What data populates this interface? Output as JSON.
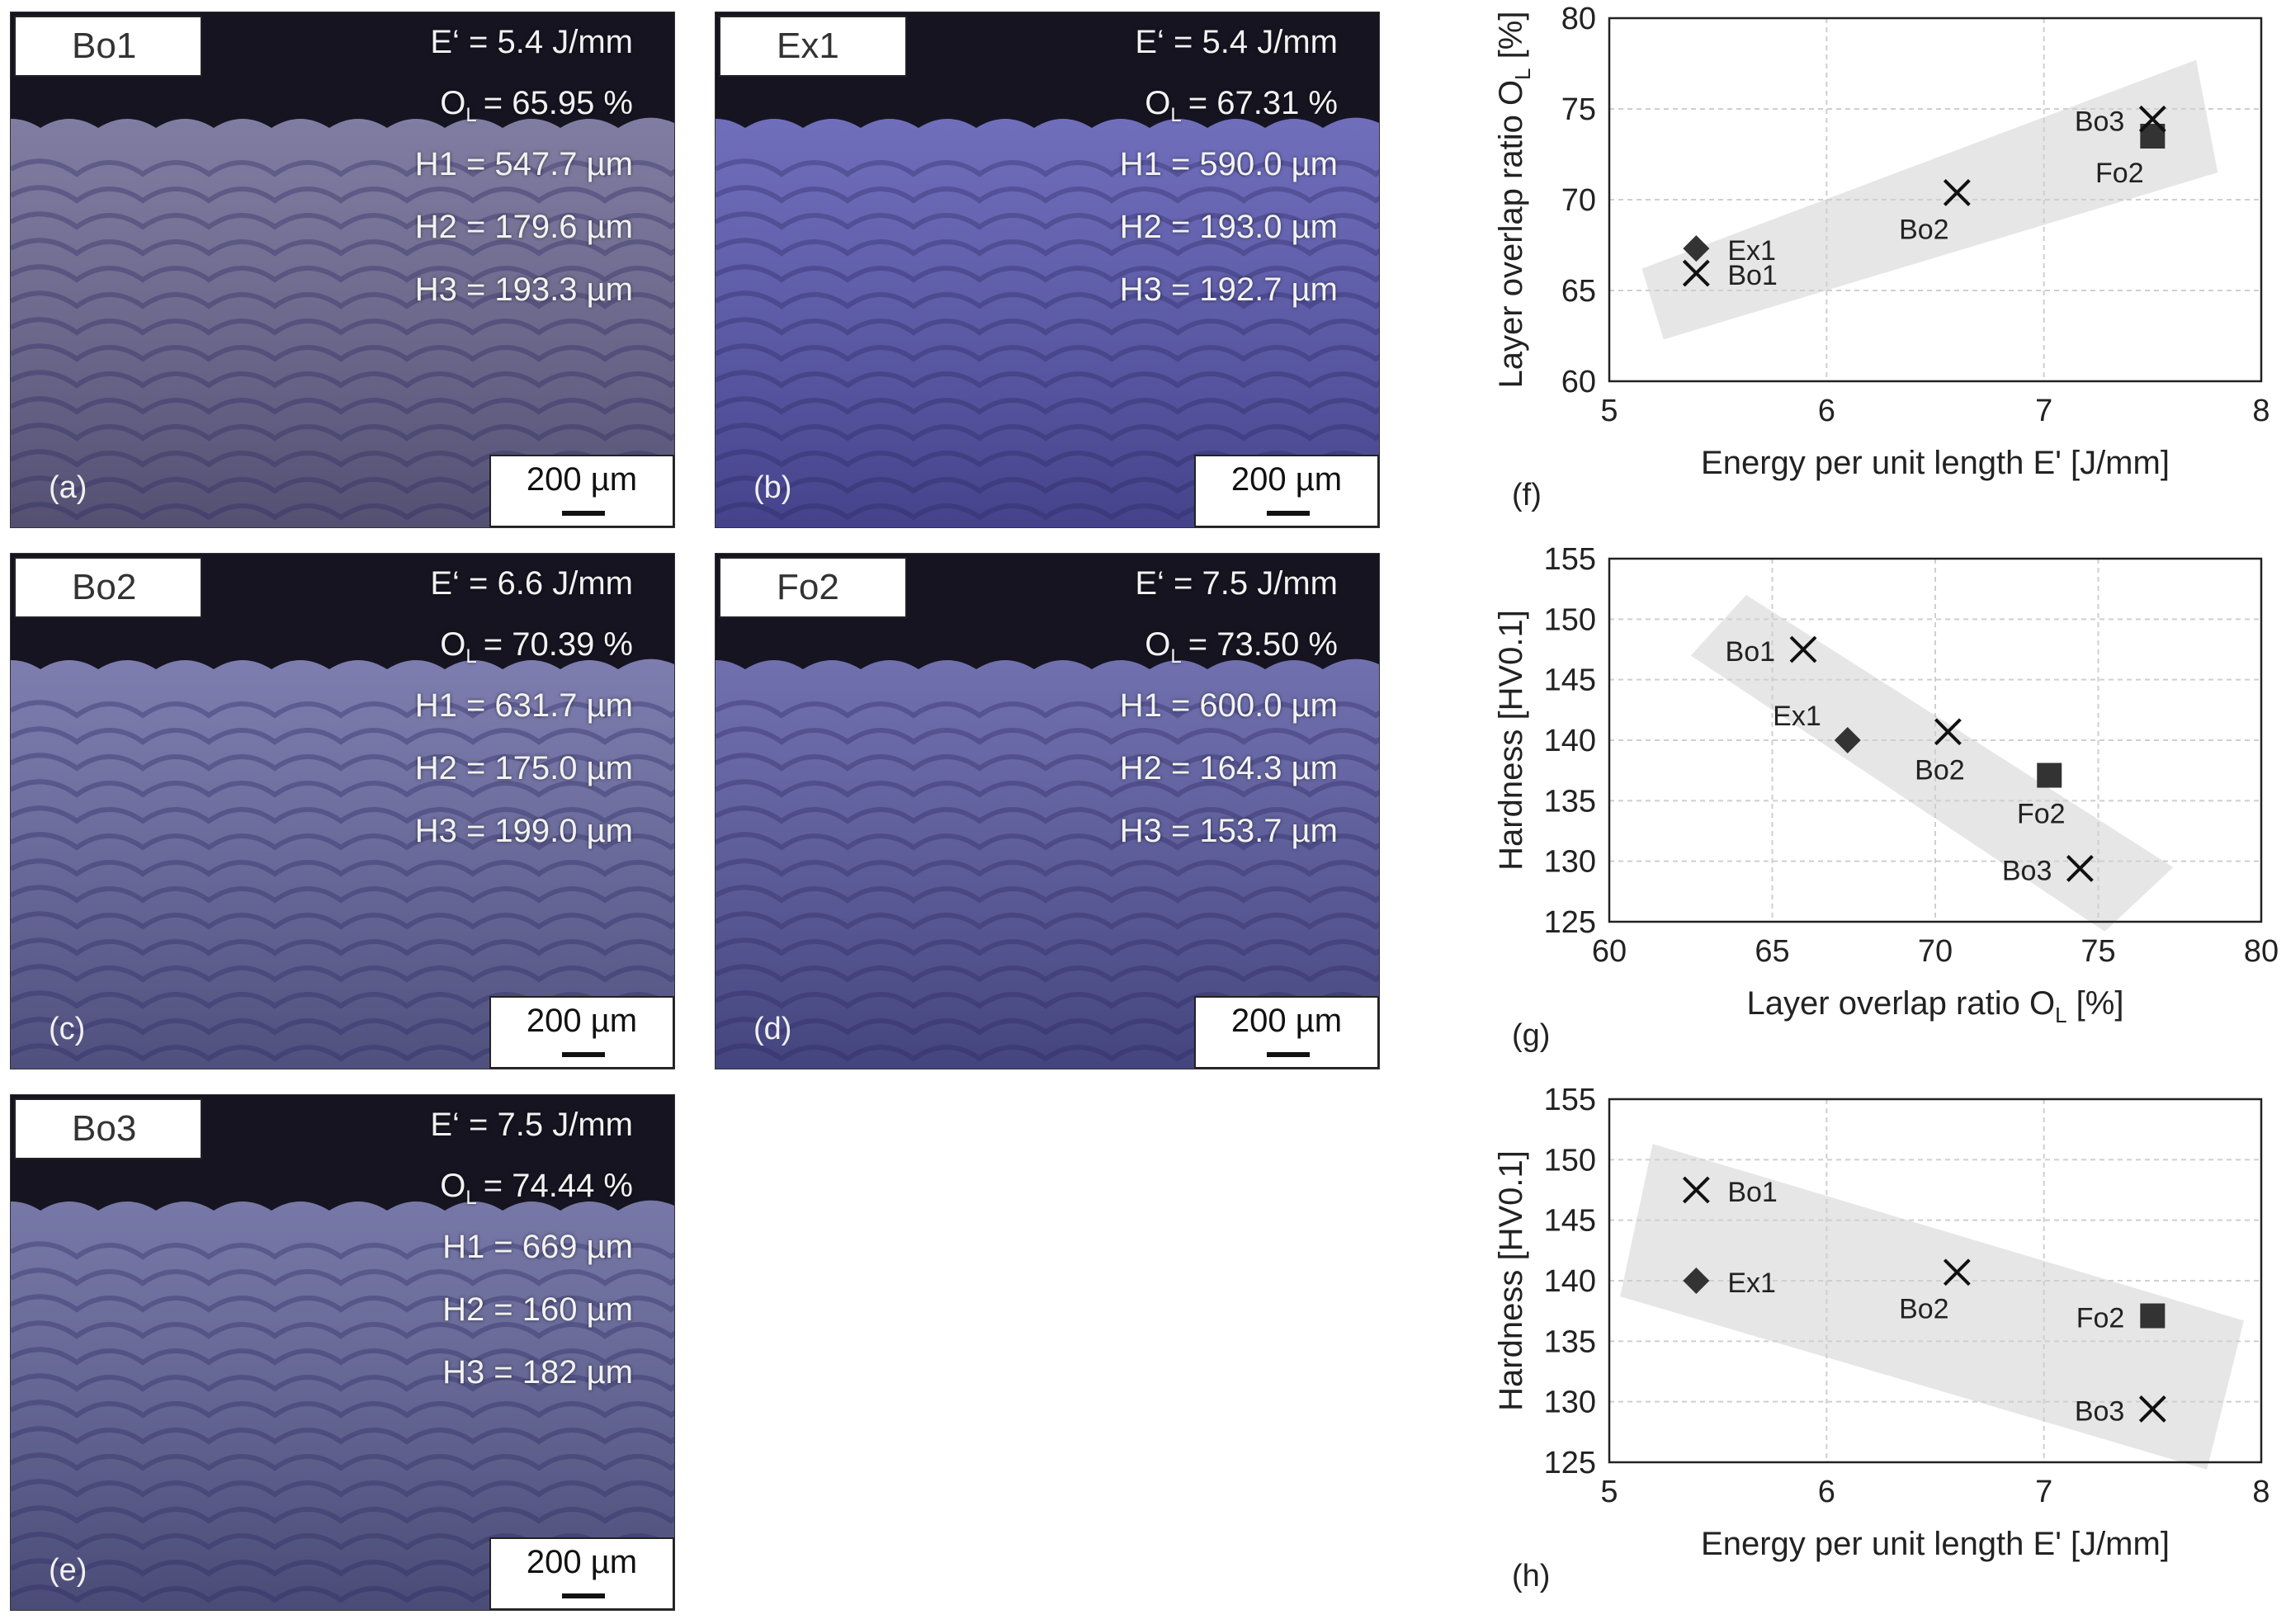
{
  "micrographs": [
    {
      "name": "Bo1",
      "energy": "E‘ = 5.4 J/mm",
      "ol_value": "= 65.95 %",
      "h1": "H1 = 547.7 µm",
      "h2": "H2 = 179.6 µm",
      "h3": "H3 = 193.3 µm",
      "label": "(a)",
      "scale": "200 µm",
      "bg": "#6f6a98"
    },
    {
      "name": "Ex1",
      "energy": "E‘ = 5.4 J/mm",
      "ol_value": "= 67.31 %",
      "h1": "H1 = 590.0 µm",
      "h2": "H2 = 193.0 µm",
      "h3": "H3 = 192.7 µm",
      "label": "(b)",
      "scale": "200 µm",
      "bg": "#5a58b8"
    },
    {
      "name": "Bo2",
      "energy": "E‘ = 6.6 J/mm",
      "ol_value": "= 70.39 %",
      "h1": "H1 = 631.7 µm",
      "h2": "H2 = 175.0 µm",
      "h3": "H3 = 199.0 µm",
      "label": "(c)",
      "scale": "200 µm",
      "bg": "#6a6aa8"
    },
    {
      "name": "Fo2",
      "energy": "E‘ = 7.5 J/mm",
      "ol_value": "= 73.50 %",
      "h1": "H1 = 600.0 µm",
      "h2": "H2 = 164.3 µm",
      "h3": "H3 = 153.7 µm",
      "label": "(d)",
      "scale": "200 µm",
      "bg": "#5a5aa8"
    },
    {
      "name": "Bo3",
      "energy": "E‘ = 7.5 J/mm",
      "ol_value": "= 74.44 %",
      "h1": "H1 = 669 µm",
      "h2": "H2 = 160 µm",
      "h3": "H3 = 182 µm",
      "label": "(e)",
      "scale": "200 µm",
      "bg": "#62649e"
    }
  ],
  "ol_prefix": "O",
  "ol_sub": "L",
  "chart_data": [
    {
      "type": "scatter",
      "panel_label": "(f)",
      "xlabel": "Energy per unit length E' [J/mm]",
      "ylabel": "Layer overlap ratio O",
      "ylabel_sub": "L",
      "ylabel_unit": " [%]",
      "xlim": [
        5,
        8
      ],
      "ylim": [
        60,
        80
      ],
      "xticks": [
        5,
        6,
        7,
        8
      ],
      "yticks": [
        60,
        65,
        70,
        75,
        80
      ],
      "band": [
        [
          5.15,
          66.2
        ],
        [
          5.25,
          62.3
        ],
        [
          7.8,
          71.5
        ],
        [
          7.7,
          77.7
        ]
      ],
      "points": [
        {
          "name": "Bo1",
          "x": 5.4,
          "y": 65.95,
          "marker": "x",
          "label_pos": "right"
        },
        {
          "name": "Ex1",
          "x": 5.4,
          "y": 67.31,
          "marker": "diamond",
          "label_pos": "right"
        },
        {
          "name": "Bo2",
          "x": 6.6,
          "y": 70.39,
          "marker": "x",
          "label_pos": "below-left"
        },
        {
          "name": "Fo2",
          "x": 7.5,
          "y": 73.5,
          "marker": "square",
          "label_pos": "below-left"
        },
        {
          "name": "Bo3",
          "x": 7.5,
          "y": 74.44,
          "marker": "x",
          "label_pos": "left"
        }
      ]
    },
    {
      "type": "scatter",
      "panel_label": "(g)",
      "xlabel": "Layer overlap ratio O",
      "xlabel_sub": "L",
      "xlabel_unit": " [%]",
      "ylabel": "Hardness [HV0.1]",
      "xlim": [
        60,
        80
      ],
      "ylim": [
        125,
        155
      ],
      "xticks": [
        60,
        65,
        70,
        75,
        80
      ],
      "yticks": [
        125,
        130,
        135,
        140,
        145,
        150,
        155
      ],
      "band": [
        [
          62.5,
          147
        ],
        [
          64.2,
          152
        ],
        [
          77.3,
          129.5
        ],
        [
          75.2,
          124.2
        ]
      ],
      "points": [
        {
          "name": "Bo1",
          "x": 65.95,
          "y": 147.5,
          "marker": "x",
          "label_pos": "left"
        },
        {
          "name": "Ex1",
          "x": 67.31,
          "y": 140,
          "marker": "diamond",
          "label_pos": "above-left"
        },
        {
          "name": "Bo2",
          "x": 70.39,
          "y": 140.7,
          "marker": "x",
          "label_pos": "below"
        },
        {
          "name": "Fo2",
          "x": 73.5,
          "y": 137.1,
          "marker": "square",
          "label_pos": "below"
        },
        {
          "name": "Bo3",
          "x": 74.44,
          "y": 129.4,
          "marker": "x",
          "label_pos": "left"
        }
      ]
    },
    {
      "type": "scatter",
      "panel_label": "(h)",
      "xlabel": "Energy per unit length E' [J/mm]",
      "ylabel": "Hardness [HV0.1]",
      "xlim": [
        5,
        8
      ],
      "ylim": [
        125,
        155
      ],
      "xticks": [
        5,
        6,
        7,
        8
      ],
      "yticks": [
        125,
        130,
        135,
        140,
        145,
        150,
        155
      ],
      "band": [
        [
          5.05,
          138.7
        ],
        [
          5.2,
          151.3
        ],
        [
          7.92,
          136.7
        ],
        [
          7.75,
          124.4
        ]
      ],
      "points": [
        {
          "name": "Bo1",
          "x": 5.4,
          "y": 147.5,
          "marker": "x",
          "label_pos": "right"
        },
        {
          "name": "Ex1",
          "x": 5.4,
          "y": 140,
          "marker": "diamond",
          "label_pos": "right"
        },
        {
          "name": "Bo2",
          "x": 6.6,
          "y": 140.7,
          "marker": "x",
          "label_pos": "below-left"
        },
        {
          "name": "Fo2",
          "x": 7.5,
          "y": 137.1,
          "marker": "square",
          "label_pos": "left"
        },
        {
          "name": "Bo3",
          "x": 7.5,
          "y": 129.4,
          "marker": "x",
          "label_pos": "left"
        }
      ]
    }
  ]
}
